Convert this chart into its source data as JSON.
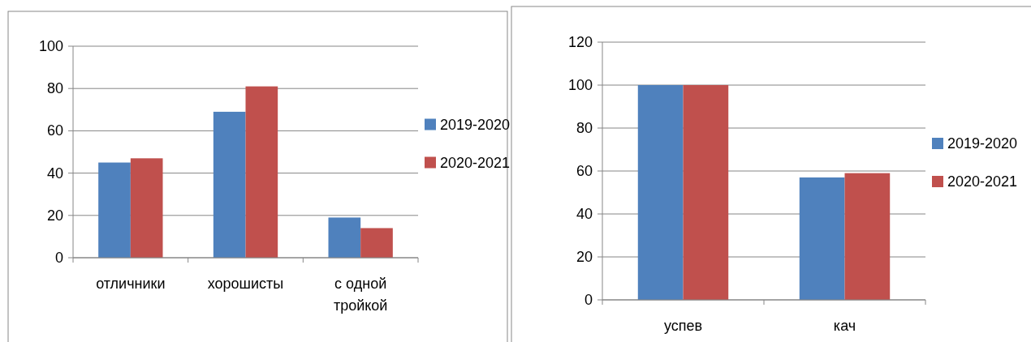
{
  "chart_data": [
    {
      "type": "bar",
      "categories": [
        "отличники",
        "хорошисты",
        "с одной тройкой"
      ],
      "series": [
        {
          "name": "2019-2020",
          "color": "#4f81bd",
          "values": [
            45,
            69,
            19
          ]
        },
        {
          "name": "2020-2021",
          "color": "#c0504d",
          "values": [
            47,
            81,
            14
          ]
        }
      ],
      "ylim": [
        0,
        100
      ],
      "yticks": [
        0,
        20,
        40,
        60,
        80,
        100
      ],
      "grid": "y",
      "legend": "right"
    },
    {
      "type": "bar",
      "categories": [
        "успев",
        "кач"
      ],
      "series": [
        {
          "name": "2019-2020",
          "color": "#4f81bd",
          "values": [
            100,
            57
          ]
        },
        {
          "name": "2020-2021",
          "color": "#c0504d",
          "values": [
            100,
            59
          ]
        }
      ],
      "ylim": [
        0,
        120
      ],
      "yticks": [
        0,
        20,
        40,
        60,
        80,
        100,
        120
      ],
      "grid": "y",
      "legend": "right"
    }
  ]
}
